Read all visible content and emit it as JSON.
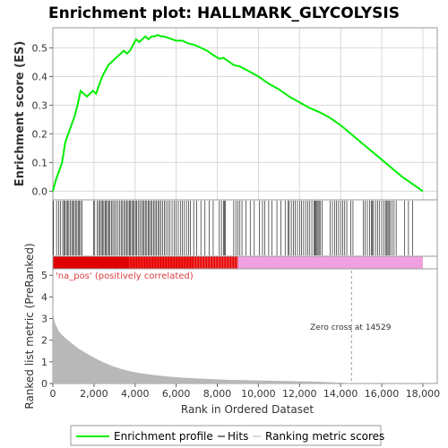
{
  "chart_data": {
    "type": "line",
    "title": "Enrichment plot: HALLMARK_GLYCOLYSIS",
    "xlabel": "Rank in Ordered Dataset",
    "xlim": [
      0,
      18700
    ],
    "x_ticks": [
      "0",
      "2,000",
      "4,000",
      "6,000",
      "8,000",
      "10,000",
      "12,000",
      "14,000",
      "16,000",
      "18,000"
    ],
    "x_tick_values": [
      0,
      2000,
      4000,
      6000,
      8000,
      10000,
      12000,
      14000,
      16000,
      18000
    ],
    "panels": {
      "enrichment": {
        "ylabel": "Enrichment score (ES)",
        "ylim": [
          -0.03,
          0.57
        ],
        "y_ticks": [
          "0.0",
          "0.1",
          "0.2",
          "0.3",
          "0.4",
          "0.5"
        ],
        "y_tick_values": [
          0.0,
          0.1,
          0.2,
          0.3,
          0.4,
          0.5
        ],
        "grid": true,
        "series": [
          {
            "name": "Enrichment profile",
            "color": "#00ee00",
            "x": [
              0,
              150,
              300,
              450,
              600,
              750,
              900,
              1050,
              1200,
              1350,
              1500,
              1650,
              1800,
              1950,
              2100,
              2250,
              2400,
              2550,
              2700,
              2850,
              3000,
              3150,
              3300,
              3450,
              3600,
              3750,
              3900,
              4050,
              4200,
              4350,
              4500,
              4650,
              4800,
              4950,
              5100,
              5250,
              5400,
              5600,
              5800,
              6000,
              6300,
              6600,
              6900,
              7200,
              7500,
              7800,
              8100,
              8300,
              8500,
              8800,
              9100,
              9500,
              10000,
              10500,
              11000,
              11500,
              12000,
              12500,
              13000,
              13500,
              14000,
              14500,
              15000,
              15500,
              16000,
              16500,
              17000,
              17500,
              18000
            ],
            "y": [
              0.0,
              0.04,
              0.07,
              0.1,
              0.17,
              0.2,
              0.23,
              0.26,
              0.3,
              0.35,
              0.34,
              0.33,
              0.34,
              0.35,
              0.34,
              0.37,
              0.4,
              0.42,
              0.44,
              0.45,
              0.46,
              0.47,
              0.48,
              0.49,
              0.48,
              0.49,
              0.51,
              0.53,
              0.52,
              0.53,
              0.54,
              0.53,
              0.54,
              0.54,
              0.545,
              0.54,
              0.54,
              0.535,
              0.53,
              0.525,
              0.525,
              0.515,
              0.51,
              0.5,
              0.49,
              0.475,
              0.462,
              0.465,
              0.455,
              0.44,
              0.435,
              0.42,
              0.4,
              0.375,
              0.355,
              0.33,
              0.31,
              0.29,
              0.275,
              0.255,
              0.23,
              0.2,
              0.17,
              0.14,
              0.11,
              0.08,
              0.05,
              0.025,
              0.0
            ]
          }
        ]
      },
      "hits": {
        "legend_name": "Hits",
        "hit_positions": [
          30,
          180,
          280,
          380,
          480,
          540,
          600,
          660,
          720,
          780,
          860,
          920,
          980,
          1040,
          1100,
          1170,
          1230,
          1290,
          1350,
          1420,
          1980,
          2040,
          2150,
          2230,
          2300,
          2360,
          2420,
          2480,
          2540,
          2600,
          2660,
          2720,
          2780,
          2850,
          2920,
          3000,
          3080,
          3160,
          3240,
          3320,
          3390,
          3460,
          3530,
          3600,
          3660,
          3720,
          3780,
          3840,
          3900,
          3960,
          4020,
          4080,
          4150,
          4230,
          4310,
          4380,
          4440,
          4500,
          4570,
          4640,
          4700,
          4760,
          4830,
          4900,
          4970,
          5040,
          5110,
          5180,
          5260,
          5340,
          5420,
          5500,
          5600,
          5700,
          5800,
          5900,
          6000,
          6100,
          6200,
          6300,
          6400,
          6500,
          6600,
          6700,
          6850,
          7000,
          7200,
          7400,
          7600,
          7800,
          8100,
          8200,
          8300,
          8350,
          8400,
          8800,
          8900,
          9000,
          9100,
          9200,
          9400,
          9600,
          9800,
          10050,
          10200,
          10300,
          10500,
          10650,
          10900,
          11100,
          11300,
          11450,
          11500,
          11600,
          11700,
          11800,
          11900,
          12000,
          12100,
          12200,
          12300,
          12400,
          12500,
          12600,
          12700,
          12750,
          12800,
          12850,
          12900,
          12950,
          13000,
          13100,
          13500,
          13600,
          13700,
          13800,
          13900,
          14000,
          14100,
          14200,
          14300,
          14500,
          14600,
          15100,
          15200,
          15300,
          15400,
          15500,
          15550,
          15600,
          15700,
          15800,
          15900,
          16000,
          16100,
          16200,
          16250,
          16300,
          16350,
          16400,
          16500,
          16600,
          16700,
          17100,
          17300,
          17500
        ]
      },
      "metric": {
        "ylabel": "Ranked list metric (PreRanked)",
        "ylim": [
          0,
          5.3
        ],
        "y_ticks": [
          "0",
          "1",
          "2",
          "3",
          "4",
          "5"
        ],
        "y_tick_values": [
          0,
          1,
          2,
          3,
          4,
          5
        ],
        "legend_name": "Ranking metric scores",
        "x": [
          0,
          20,
          60,
          120,
          200,
          300,
          450,
          600,
          800,
          1000,
          1200,
          1500,
          1800,
          2100,
          2400,
          2700,
          3000,
          3400,
          3800,
          4200,
          4600,
          5000,
          5500,
          6000,
          6500,
          7000,
          7500,
          8000,
          8500,
          9000,
          9500,
          10000,
          10500,
          11000,
          11500,
          12000,
          12500,
          13000,
          13500,
          14000,
          14400,
          14529
        ],
        "y": [
          3.4,
          3.2,
          2.95,
          2.75,
          2.6,
          2.4,
          2.25,
          2.1,
          1.95,
          1.8,
          1.65,
          1.47,
          1.3,
          1.15,
          1.0,
          0.88,
          0.77,
          0.65,
          0.56,
          0.48,
          0.43,
          0.38,
          0.33,
          0.29,
          0.26,
          0.23,
          0.21,
          0.19,
          0.17,
          0.16,
          0.15,
          0.14,
          0.13,
          0.12,
          0.11,
          0.1,
          0.09,
          0.08,
          0.06,
          0.04,
          0.02,
          0.0
        ],
        "pos_label": "'na_pos' (positively correlated)",
        "zero_cross_label": "Zero cross at 14529",
        "zero_cross": 14529
      }
    },
    "legend": {
      "placement": "bottom",
      "items": [
        "Enrichment profile",
        "Hits",
        "Ranking metric scores"
      ]
    }
  },
  "colors": {
    "es_line": "#00ee00",
    "hits": "#000000",
    "bar_red": "#e60000",
    "bar_pink": "#f0a0e0",
    "metric_fill": "#b8b8b8",
    "grid": "#d8d8d8",
    "pos_label": "#d94040"
  }
}
